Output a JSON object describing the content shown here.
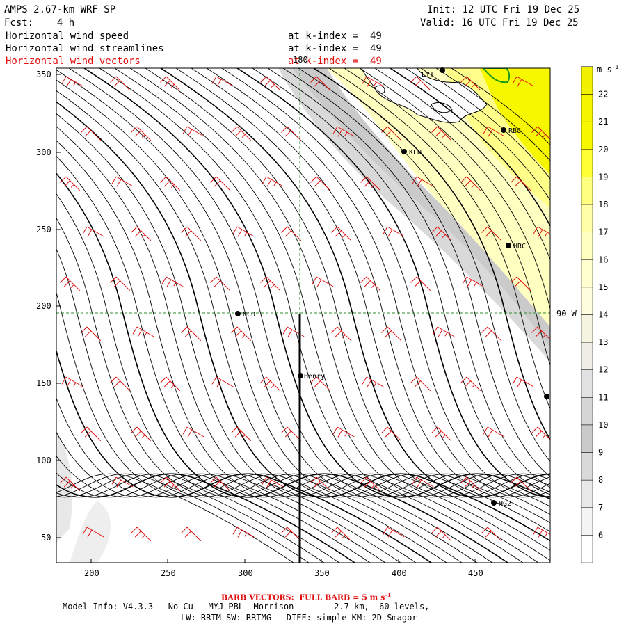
{
  "header": {
    "title": "AMPS 2.67-km WRF SP",
    "fcst": "Fcst:    4 h",
    "init": "Init: 12 UTC Fri 19 Dec 25",
    "valid": "Valid: 16 UTC Fri 19 Dec 25",
    "fields": [
      {
        "name": "Horizontal wind speed",
        "level": "at k-index =  49",
        "color": "#000000"
      },
      {
        "name": "Horizontal wind streamlines",
        "level": "at k-index =  49",
        "color": "#000000"
      },
      {
        "name": "Horizontal wind vectors",
        "level": "at k-index =  49",
        "color": "#e01010"
      }
    ]
  },
  "map": {
    "x_ticks": [
      "200",
      "250",
      "300",
      "350",
      "400",
      "450"
    ],
    "y_ticks": [
      "350",
      "300",
      "250",
      "200",
      "150",
      "100",
      "50"
    ],
    "meridian_label": "180",
    "parallel_label": "90 W",
    "stations": [
      {
        "name": "NCO"
      },
      {
        "name": "Henry"
      },
      {
        "name": "KLN"
      },
      {
        "name": "RBG"
      },
      {
        "name": "HRC"
      },
      {
        "name": "HG2"
      },
      {
        "name": "LYT"
      }
    ],
    "colors": {
      "streamline": "#000000",
      "barb": "#e01010",
      "grid": "#2e8b2e",
      "coast": "#1a9a1a"
    }
  },
  "colorbar": {
    "unit": "m s-1",
    "levels": [
      "22",
      "21",
      "20",
      "19",
      "18",
      "17",
      "16",
      "15",
      "14",
      "13",
      "12",
      "11",
      "10",
      "9",
      "8",
      "7",
      "6"
    ],
    "colors": [
      "#f2f200",
      "#f5f500",
      "#f7f700",
      "#ffff33",
      "#ffff80",
      "#ffffa8",
      "#ffffc0",
      "#ffffcf",
      "#fefedc",
      "#f4f4e0",
      "#eeeee6",
      "#e2e2e2",
      "#d6d6d6",
      "#cacaca",
      "#dadada",
      "#e8e8e8",
      "#f4f4f4",
      "#ffffff"
    ]
  },
  "footer": {
    "barb_note": "BARB VECTORS:  FULL BARB = 5 m s",
    "barb_unit_sup": "-1",
    "model_info": "Model Info: V4.3.3   No Cu   MYJ PBL  Morrison        2.7 km,  60 levels,",
    "physics": "LW: RRTM SW: RRTMG   DIFF: simple KM: 2D Smagor"
  }
}
